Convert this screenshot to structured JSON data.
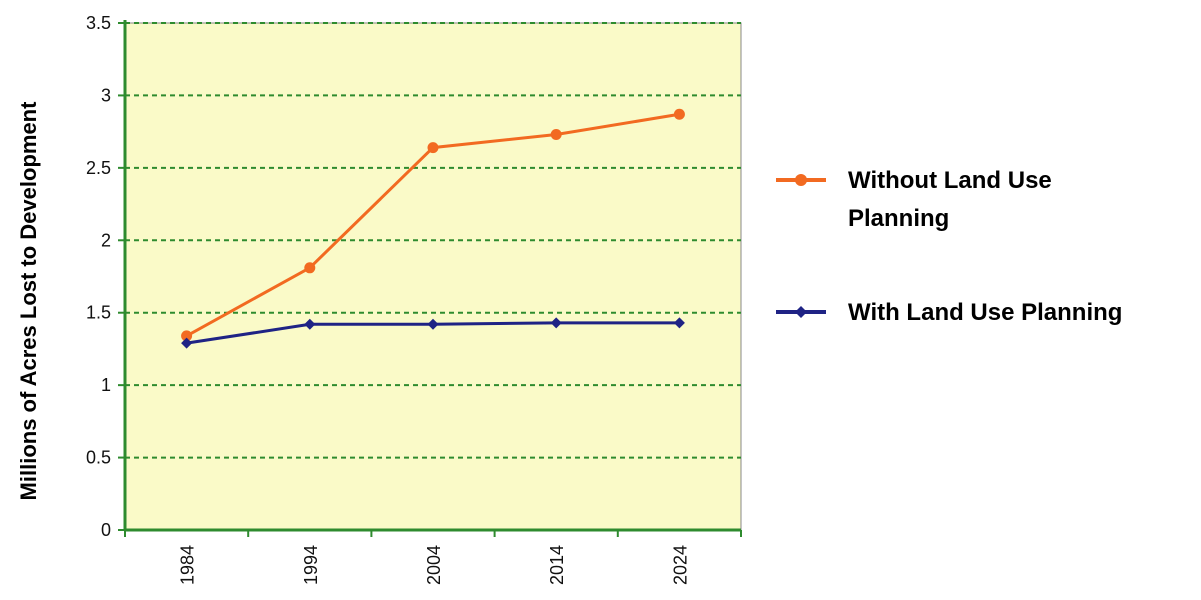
{
  "chart_data": {
    "type": "line",
    "title": "",
    "xlabel": "",
    "ylabel": "Millions of Acres Lost to Development",
    "categories": [
      "1984",
      "1994",
      "2004",
      "2014",
      "2024"
    ],
    "y_ticks": [
      "0",
      "0.5",
      "1",
      "1.5",
      "2",
      "2.5",
      "3",
      "3.5"
    ],
    "ylim": [
      0,
      3.5
    ],
    "grid": true,
    "plot_background": "#FAFAC8",
    "legend_position": "right",
    "series": [
      {
        "name": "Without Land Use Planning",
        "legend_lines": [
          "Without Land Use",
          "Planning"
        ],
        "values": [
          1.34,
          1.81,
          2.64,
          2.73,
          2.87
        ],
        "color": "#F26A21",
        "marker": "circle"
      },
      {
        "name": "With Land Use Planning",
        "legend_lines": [
          "With Land Use Planning"
        ],
        "values": [
          1.29,
          1.42,
          1.42,
          1.43,
          1.43
        ],
        "color": "#1F2385",
        "marker": "diamond"
      }
    ]
  }
}
